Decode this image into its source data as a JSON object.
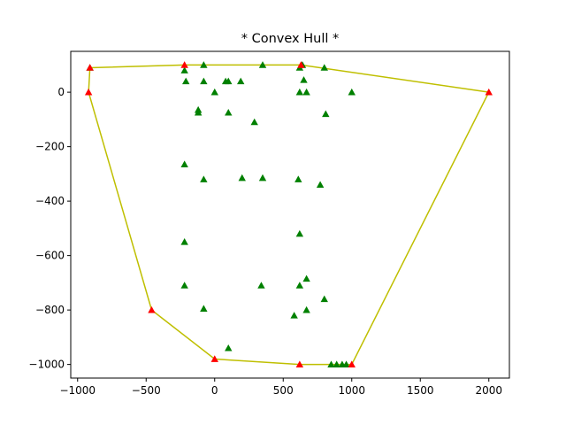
{
  "chart_data": {
    "type": "scatter",
    "title": "* Convex Hull *",
    "xlabel": "",
    "ylabel": "",
    "xlim": [
      -1050,
      2150
    ],
    "ylim": [
      -1050,
      150
    ],
    "xticks": [
      -1000,
      -500,
      0,
      500,
      1000,
      1500,
      2000
    ],
    "yticks": [
      0,
      -200,
      -400,
      -600,
      -800,
      -1000
    ],
    "xtick_labels": [
      "−1000",
      "−500",
      "0",
      "500",
      "1000",
      "1500",
      "2000"
    ],
    "ytick_labels": [
      "0",
      "−200",
      "−400",
      "−600",
      "−800",
      "−1000"
    ],
    "grid": false,
    "series": [
      {
        "role": "points",
        "marker": "triangle",
        "color": "#008000",
        "points": [
          [
            -910,
            90
          ],
          [
            -220,
            80
          ],
          [
            -210,
            40
          ],
          [
            -80,
            100
          ],
          [
            -80,
            40
          ],
          [
            0,
            0
          ],
          [
            80,
            40
          ],
          [
            100,
            40
          ],
          [
            190,
            40
          ],
          [
            350,
            100
          ],
          [
            620,
            90
          ],
          [
            640,
            100
          ],
          [
            650,
            45
          ],
          [
            620,
            0
          ],
          [
            670,
            0
          ],
          [
            800,
            90
          ],
          [
            1000,
            0
          ],
          [
            -120,
            -65
          ],
          [
            -120,
            -75
          ],
          [
            100,
            -75
          ],
          [
            810,
            -80
          ],
          [
            290,
            -110
          ],
          [
            -220,
            -265
          ],
          [
            -80,
            -320
          ],
          [
            200,
            -315
          ],
          [
            350,
            -315
          ],
          [
            610,
            -320
          ],
          [
            770,
            -340
          ],
          [
            -220,
            -550
          ],
          [
            620,
            -520
          ],
          [
            -220,
            -710
          ],
          [
            340,
            -710
          ],
          [
            620,
            -710
          ],
          [
            670,
            -685
          ],
          [
            -80,
            -795
          ],
          [
            580,
            -820
          ],
          [
            670,
            -800
          ],
          [
            800,
            -760
          ],
          [
            100,
            -940
          ],
          [
            850,
            -1000
          ],
          [
            890,
            -1000
          ],
          [
            930,
            -1000
          ],
          [
            960,
            -1000
          ]
        ]
      },
      {
        "role": "hull-vertices",
        "marker": "triangle",
        "color": "#ff0000",
        "points": [
          [
            -910,
            90
          ],
          [
            -220,
            100
          ],
          [
            630,
            100
          ],
          [
            2000,
            0
          ],
          [
            1000,
            -1000
          ],
          [
            620,
            -1000
          ],
          [
            0,
            -980
          ],
          [
            -460,
            -800
          ],
          [
            -920,
            0
          ]
        ]
      },
      {
        "role": "hull",
        "line": true,
        "color": "#bfbf00",
        "points": [
          [
            -910,
            90
          ],
          [
            -220,
            100
          ],
          [
            630,
            100
          ],
          [
            2000,
            0
          ],
          [
            1000,
            -1000
          ],
          [
            620,
            -1000
          ],
          [
            0,
            -980
          ],
          [
            -460,
            -800
          ],
          [
            -920,
            0
          ],
          [
            -910,
            90
          ]
        ]
      }
    ]
  }
}
